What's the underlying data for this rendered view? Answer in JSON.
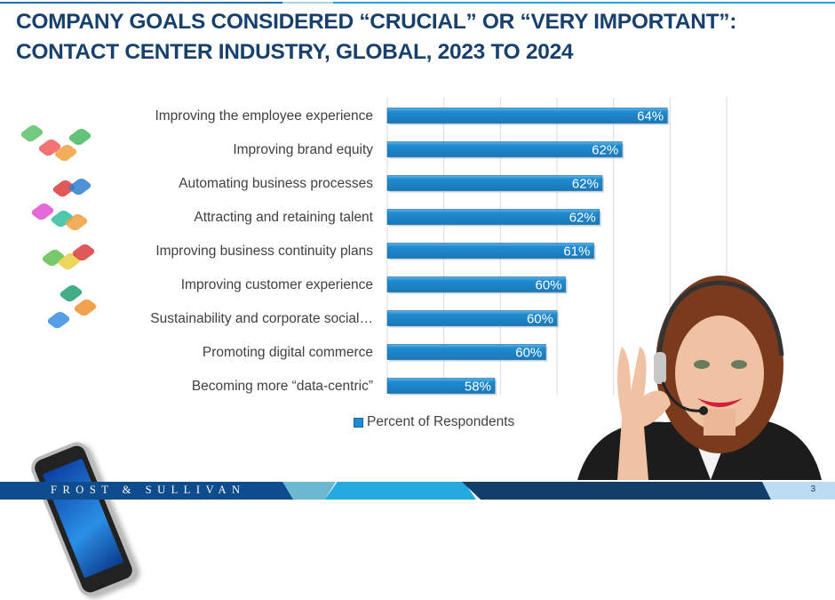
{
  "title": "COMPANY GOALS CONSIDERED “CRUCIAL” OR “VERY IMPORTANT”: CONTACT CENTER INDUSTRY, GLOBAL, 2023 TO 2024",
  "chart_data": {
    "type": "bar",
    "orientation": "horizontal",
    "title": "COMPANY GOALS CONSIDERED “CRUCIAL” OR “VERY IMPORTANT”: CONTACT CENTER INDUSTRY, GLOBAL, 2023 TO 2024",
    "categories": [
      "Improving the employee experience",
      "Improving brand equity",
      "Automating business processes",
      "Attracting and retaining talent",
      "Improving business continuity plans",
      "Improving customer experience",
      "Sustainability and corporate social…",
      "Promoting digital commerce",
      "Becoming more “data-centric”"
    ],
    "series": [
      {
        "name": "Percent of Respondents",
        "values": [
          63.9,
          62.3,
          61.6,
          61.5,
          61.3,
          60.3,
          60.0,
          59.6,
          57.8
        ],
        "labels": [
          "64%",
          "62%",
          "62%",
          "62%",
          "61%",
          "60%",
          "60%",
          "60%",
          "58%"
        ]
      }
    ],
    "xlim": [
      54,
      66
    ],
    "grid_step": 2,
    "grid": true,
    "tick_labels_shown": false,
    "legend": "bottom",
    "bar_color": "#1f8bd0"
  },
  "footer": {
    "brand": "FROST & SULLIVAN",
    "page": "3"
  }
}
